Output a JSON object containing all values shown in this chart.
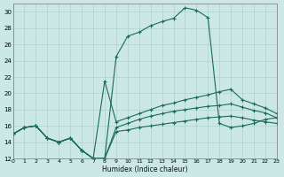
{
  "xlabel": "Humidex (Indice chaleur)",
  "bg_color": "#cce8e5",
  "grid_color": "#a8ccca",
  "line_color": "#1a6b5a",
  "xlim": [
    0,
    23
  ],
  "ylim": [
    12,
    31
  ],
  "xticks": [
    0,
    1,
    2,
    3,
    4,
    5,
    6,
    7,
    8,
    9,
    10,
    11,
    12,
    13,
    14,
    15,
    16,
    17,
    18,
    19,
    20,
    21,
    22,
    23
  ],
  "yticks": [
    12,
    14,
    16,
    18,
    20,
    22,
    24,
    26,
    28,
    30
  ],
  "curve_top_x": [
    0,
    1,
    2,
    3,
    4,
    5,
    6,
    7,
    8,
    9,
    10,
    11,
    12,
    13,
    14,
    15,
    16,
    17,
    18,
    19,
    20,
    21,
    22,
    23
  ],
  "curve_top_y": [
    15.0,
    15.8,
    16.0,
    14.5,
    14.0,
    14.5,
    13.0,
    12.0,
    12.0,
    24.5,
    27.0,
    27.5,
    28.3,
    28.8,
    29.2,
    30.5,
    30.2,
    29.3,
    16.3,
    15.8,
    16.0,
    16.3,
    16.8,
    17.0
  ],
  "curve_mid2_x": [
    0,
    1,
    2,
    3,
    4,
    5,
    6,
    7,
    8,
    9,
    10,
    11,
    12,
    13,
    14,
    15,
    16,
    17,
    18,
    19,
    20,
    21,
    22,
    23
  ],
  "curve_mid2_y": [
    15.0,
    15.8,
    16.0,
    14.5,
    14.0,
    14.5,
    13.0,
    12.0,
    21.5,
    16.5,
    17.0,
    17.5,
    18.0,
    18.5,
    18.8,
    19.2,
    19.5,
    19.8,
    20.2,
    20.5,
    19.2,
    18.7,
    18.2,
    17.5
  ],
  "curve_mid_x": [
    0,
    1,
    2,
    3,
    4,
    5,
    6,
    7,
    8,
    9,
    10,
    11,
    12,
    13,
    14,
    15,
    16,
    17,
    18,
    19,
    20,
    21,
    22,
    23
  ],
  "curve_mid_y": [
    15.0,
    15.8,
    16.0,
    14.5,
    14.0,
    14.5,
    13.0,
    12.0,
    12.0,
    15.8,
    16.3,
    16.8,
    17.2,
    17.5,
    17.8,
    18.0,
    18.2,
    18.4,
    18.5,
    18.7,
    18.3,
    17.9,
    17.6,
    17.0
  ],
  "curve_low_x": [
    0,
    1,
    2,
    3,
    4,
    5,
    6,
    7,
    8,
    9,
    10,
    11,
    12,
    13,
    14,
    15,
    16,
    17,
    18,
    19,
    20,
    21,
    22,
    23
  ],
  "curve_low_y": [
    15.0,
    15.8,
    16.0,
    14.5,
    14.0,
    14.5,
    13.0,
    12.0,
    12.0,
    15.3,
    15.5,
    15.8,
    16.0,
    16.2,
    16.4,
    16.6,
    16.8,
    17.0,
    17.1,
    17.2,
    17.0,
    16.7,
    16.5,
    16.3
  ]
}
